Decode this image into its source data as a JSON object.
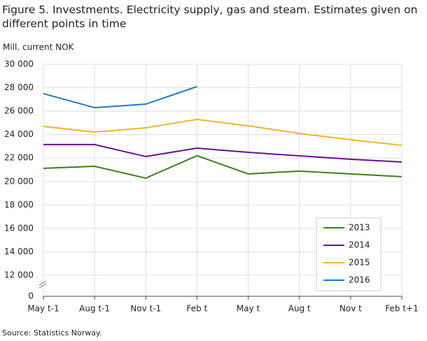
{
  "chart_data": {
    "type": "line",
    "title": "Figure 5. Investments. Electricity supply, gas and steam. Estimates given on different points in time",
    "y_label": "Mill. current NOK",
    "source": "Source: Statistics Norway.",
    "categories": [
      "May t-1",
      "Aug t-1",
      "Nov t-1",
      "Feb t",
      "May t",
      "Aug t",
      "Nov t",
      "Feb t+1"
    ],
    "series": [
      {
        "name": "2013",
        "color": "#3e7d1e",
        "values": [
          21130,
          21300,
          20290,
          22200,
          20650,
          20890,
          20650,
          20410
        ]
      },
      {
        "name": "2014",
        "color": "#6a0f8e",
        "values": [
          23150,
          23150,
          22130,
          22850,
          22490,
          22190,
          21900,
          21660
        ]
      },
      {
        "name": "2015",
        "color": "#efb42f",
        "values": [
          24700,
          24220,
          24580,
          25300,
          24750,
          24100,
          23560,
          23090
        ]
      },
      {
        "name": "2016",
        "color": "#1f78c1",
        "values": [
          27500,
          26300,
          26600,
          28100,
          null,
          null,
          null,
          null
        ]
      }
    ],
    "ylim": [
      0,
      30000
    ],
    "yticks": [
      0,
      {
        "value": 12000,
        "label": "12 000"
      },
      {
        "value": 14000,
        "label": "14 000"
      },
      {
        "value": 16000,
        "label": "16 000"
      },
      {
        "value": 18000,
        "label": "18 000"
      },
      {
        "value": 20000,
        "label": "20 000"
      },
      {
        "value": 22000,
        "label": "22 000"
      },
      {
        "value": 24000,
        "label": "24 000"
      },
      {
        "value": 26000,
        "label": "26 000"
      },
      {
        "value": 28000,
        "label": "28 000"
      },
      {
        "value": 30000,
        "label": "30 000"
      }
    ],
    "axis_break": true,
    "grid": true,
    "legend_position": "lower right"
  }
}
